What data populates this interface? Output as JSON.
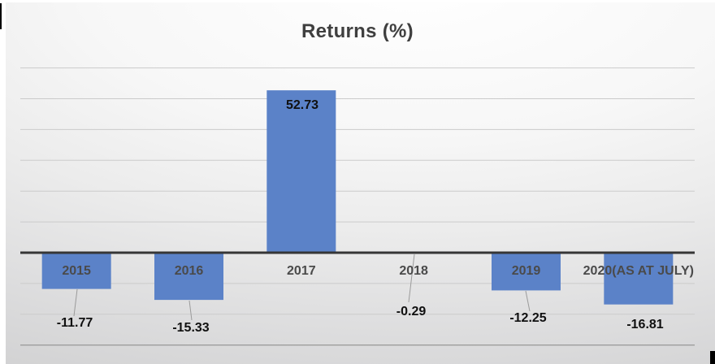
{
  "title": "Returns (%)",
  "colors": {
    "bar_fill": "#5b82c8",
    "title_text": "#3f3f3f",
    "category_text": "#4a4a4a",
    "value_text": "#101010",
    "axis_line": "#363636",
    "gridline": "#cbcbcb",
    "gridline_bottom": "#9d9d9d",
    "leader_line": "#9a9a9a",
    "background_top": "#ffffff",
    "background_bottom": "#cfcfcf"
  },
  "chart_data": {
    "type": "bar",
    "title": "Returns (%)",
    "categories": [
      "2015",
      "2016",
      "2017",
      "2018",
      "2019",
      "2020(AS AT JULY)"
    ],
    "values": [
      -11.77,
      -15.33,
      52.73,
      -0.29,
      -12.25,
      -16.81
    ],
    "value_labels": [
      "-11.77",
      "-15.33",
      "52.73",
      "-0.29",
      "-12.25",
      "-16.81"
    ],
    "xlabel": "",
    "ylabel": "",
    "ylim": [
      -30,
      60
    ],
    "grid_step": 10,
    "grid": true,
    "legend_position": "none",
    "axis_tick_labels_visible": false,
    "category_labels_position": "just below zero axis",
    "data_labels_with_leader_lines": [
      "2015",
      "2016",
      "2018",
      "2019"
    ]
  }
}
